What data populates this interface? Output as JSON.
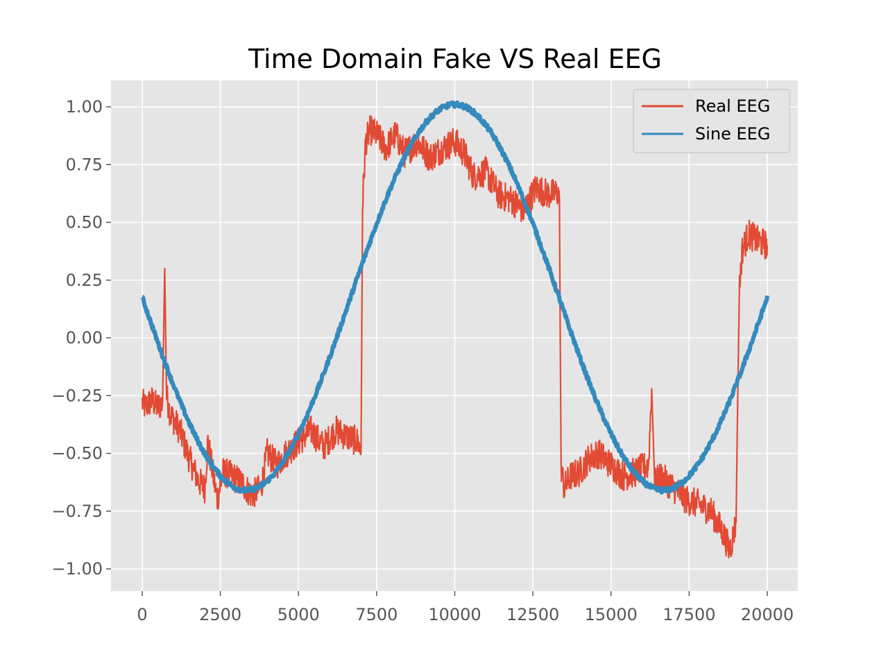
{
  "chart_data": {
    "type": "line",
    "title": "Time Domain Fake VS Real EEG",
    "xlabel": "",
    "ylabel": "",
    "xlim": [
      -1000,
      21000
    ],
    "ylim": [
      -1.1,
      1.1
    ],
    "x_ticks": [
      0,
      2500,
      5000,
      7500,
      10000,
      12500,
      15000,
      17500,
      20000
    ],
    "x_tick_labels": [
      "0",
      "2500",
      "5000",
      "7500",
      "10000",
      "12500",
      "15000",
      "17500",
      "20000"
    ],
    "y_ticks": [
      1.0,
      0.75,
      0.5,
      0.25,
      0.0,
      -0.25,
      -0.5,
      -0.75,
      -1.0
    ],
    "y_tick_labels": [
      "1.00",
      "0.75",
      "0.50",
      "0.25",
      "0.00",
      "−0.25",
      "−0.50",
      "−0.75",
      "−1.00"
    ],
    "grid": true,
    "legend_position": "top-right",
    "series": [
      {
        "name": "Real EEG",
        "color": "#e24a33",
        "x": [
          0,
          100,
          300,
          500,
          650,
          720,
          780,
          900,
          1200,
          1500,
          1800,
          2000,
          2100,
          2300,
          2400,
          2600,
          2900,
          3200,
          3500,
          3800,
          4000,
          4300,
          4600,
          5000,
          5400,
          5800,
          6200,
          6600,
          6900,
          7000,
          7050,
          7150,
          7300,
          7500,
          7800,
          8100,
          8400,
          8800,
          9200,
          9600,
          10000,
          10300,
          10600,
          11000,
          11400,
          11800,
          12200,
          12600,
          13000,
          13300,
          13350,
          13400,
          13500,
          13700,
          14000,
          14300,
          14600,
          15000,
          15400,
          15800,
          16200,
          16300,
          16400,
          16600,
          17000,
          17400,
          17800,
          18200,
          18600,
          18800,
          19000,
          19100,
          19200,
          19400,
          19700,
          20000
        ],
        "y": [
          -0.28,
          -0.3,
          -0.27,
          -0.3,
          -0.28,
          0.3,
          -0.25,
          -0.33,
          -0.4,
          -0.52,
          -0.62,
          -0.65,
          -0.45,
          -0.62,
          -0.7,
          -0.58,
          -0.6,
          -0.63,
          -0.68,
          -0.65,
          -0.5,
          -0.55,
          -0.5,
          -0.45,
          -0.4,
          -0.47,
          -0.4,
          -0.43,
          -0.45,
          -0.5,
          0.58,
          0.85,
          0.9,
          0.88,
          0.82,
          0.88,
          0.8,
          0.85,
          0.78,
          0.82,
          0.85,
          0.8,
          0.7,
          0.72,
          0.62,
          0.6,
          0.55,
          0.65,
          0.62,
          0.63,
          0.6,
          -0.55,
          -0.65,
          -0.6,
          -0.58,
          -0.52,
          -0.5,
          -0.55,
          -0.6,
          -0.58,
          -0.55,
          -0.22,
          -0.63,
          -0.6,
          -0.65,
          -0.7,
          -0.72,
          -0.75,
          -0.85,
          -0.92,
          -0.8,
          0.2,
          0.38,
          0.45,
          0.42,
          0.4
        ]
      },
      {
        "name": "Sine EEG",
        "color": "#348abd",
        "function": "y = 0.18 + 0.83*(sin(2*pi*(x-10000)/13333 + pi/2) - 0.22)"
      }
    ]
  }
}
